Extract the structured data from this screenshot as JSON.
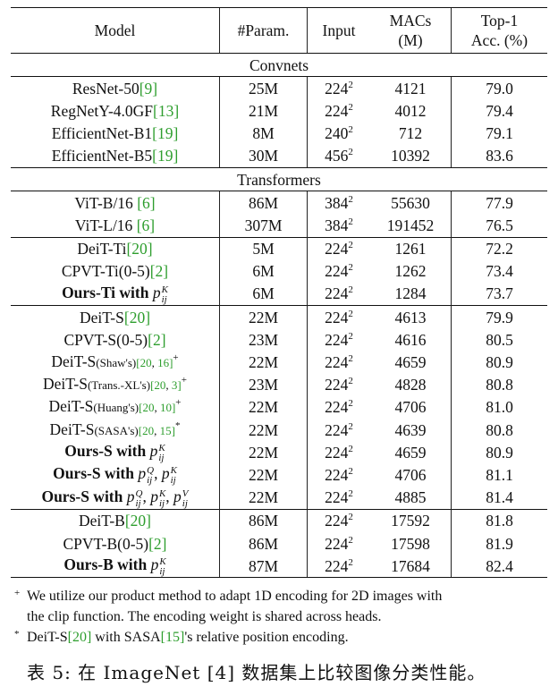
{
  "header": {
    "model": "Model",
    "params": "#Param.",
    "input": "Input",
    "macs_line1": "MACs",
    "macs_line2": "(M)",
    "top1_line1": "Top-1",
    "top1_line2": "Acc. (%)"
  },
  "sections": {
    "convnets": "Convnets",
    "transformers": "Transformers"
  },
  "rows": [
    {
      "name": "ResNet-50",
      "cite": "[9]",
      "params": "25M",
      "input": "224",
      "sup": "2",
      "macs": "4121",
      "acc": "79.0"
    },
    {
      "name": "RegNetY-4.0GF",
      "cite": "[13]",
      "params": "21M",
      "input": "224",
      "sup": "2",
      "macs": "4012",
      "acc": "79.4"
    },
    {
      "name": "EfficientNet-B1",
      "cite": "[19]",
      "params": "8M",
      "input": "240",
      "sup": "2",
      "macs": "712",
      "acc": "79.1"
    },
    {
      "name": "EfficientNet-B5",
      "cite": "[19]",
      "params": "30M",
      "input": "456",
      "sup": "2",
      "macs": "10392",
      "acc": "83.6"
    },
    {
      "name": "ViT-B/16 ",
      "cite": "[6]",
      "params": "86M",
      "input": "384",
      "sup": "2",
      "macs": "55630",
      "acc": "77.9"
    },
    {
      "name": "ViT-L/16 ",
      "cite": "[6]",
      "params": "307M",
      "input": "384",
      "sup": "2",
      "macs": "191452",
      "acc": "76.5"
    },
    {
      "name": "DeiT-Ti",
      "cite": "[20]",
      "params": "5M",
      "input": "224",
      "sup": "2",
      "macs": "1261",
      "acc": "72.2"
    },
    {
      "name": "CPVT-Ti(0-5)",
      "cite": "[2]",
      "params": "6M",
      "input": "224",
      "sup": "2",
      "macs": "1262",
      "acc": "73.4"
    },
    {
      "name": "Ours-Ti with ",
      "p": "p",
      "psup": "K",
      "psub": "ij",
      "params": "6M",
      "input": "224",
      "sup": "2",
      "macs": "1284",
      "acc": "73.7"
    },
    {
      "name": "DeiT-S",
      "cite": "[20]",
      "params": "22M",
      "input": "224",
      "sup": "2",
      "macs": "4613",
      "acc": "79.9"
    },
    {
      "name": "CPVT-S(0-5)",
      "cite": "[2]",
      "params": "23M",
      "input": "224",
      "sup": "2",
      "macs": "4616",
      "acc": "80.5"
    },
    {
      "name": "DeiT-S",
      "small": "(Shaw's)",
      "cite1": "20",
      "cite2": "16",
      "mark": "+",
      "params": "22M",
      "input": "224",
      "sup": "2",
      "macs": "4659",
      "acc": "80.9"
    },
    {
      "name": "DeiT-S",
      "small": "(Trans.-XL's)",
      "cite1": "20",
      "cite2": "3",
      "mark": "+",
      "params": "23M",
      "input": "224",
      "sup": "2",
      "macs": "4828",
      "acc": "80.8"
    },
    {
      "name": "DeiT-S",
      "small": "(Huang's)",
      "cite1": "20",
      "cite2": "10",
      "mark": "+",
      "params": "22M",
      "input": "224",
      "sup": "2",
      "macs": "4706",
      "acc": "81.0"
    },
    {
      "name": "DeiT-S",
      "small": "(SASA's)",
      "cite1": "20",
      "cite2": "15",
      "mark": "*",
      "params": "22M",
      "input": "224",
      "sup": "2",
      "macs": "4639",
      "acc": "80.8"
    },
    {
      "name": "Ours-S with ",
      "p": "p",
      "psup": "K",
      "psub": "ij",
      "params": "22M",
      "input": "224",
      "sup": "2",
      "macs": "4659",
      "acc": "80.9"
    },
    {
      "name": "Ours-S with ",
      "p": "p",
      "psup": "Q",
      "psub": "ij",
      "sep": ", ",
      "p2": "p",
      "p2sup": "K",
      "p2sub": "ij",
      "params": "22M",
      "input": "224",
      "sup": "2",
      "macs": "4706",
      "acc": "81.1"
    },
    {
      "name": "Ours-S with ",
      "p": "p",
      "psup": "Q",
      "psub": "ij",
      "sep": ", ",
      "p2": "p",
      "p2sup": "K",
      "p2sub": "ij",
      "sep2": ", ",
      "p3": "p",
      "p3sup": "V",
      "p3sub": "ij",
      "params": "22M",
      "input": "224",
      "sup": "2",
      "macs": "4885",
      "acc": "81.4"
    },
    {
      "name": "DeiT-B",
      "cite": "[20]",
      "params": "86M",
      "input": "224",
      "sup": "2",
      "macs": "17592",
      "acc": "81.8"
    },
    {
      "name": "CPVT-B(0-5)",
      "cite": "[2]",
      "params": "86M",
      "input": "224",
      "sup": "2",
      "macs": "17598",
      "acc": "81.9"
    },
    {
      "name": "Ours-B with ",
      "p": "p",
      "psup": "K",
      "psub": "ij",
      "params": "87M",
      "input": "224",
      "sup": "2",
      "macs": "17684",
      "acc": "82.4"
    }
  ],
  "footnotes": {
    "plus_mark": "+",
    "plus_line1": "We utilize our product method to adapt 1D encoding for 2D images with",
    "plus_line2": "the clip function. The encoding weight is shared across heads.",
    "star_mark": "*",
    "star_pre": "DeiT-S",
    "star_cite1": "[20]",
    "star_mid": " with SASA",
    "star_cite2": "[15]",
    "star_post": "'s relative position encoding."
  },
  "caption": "表 5: 在 ImageNet [4] 数据集上比较图像分类性能。"
}
